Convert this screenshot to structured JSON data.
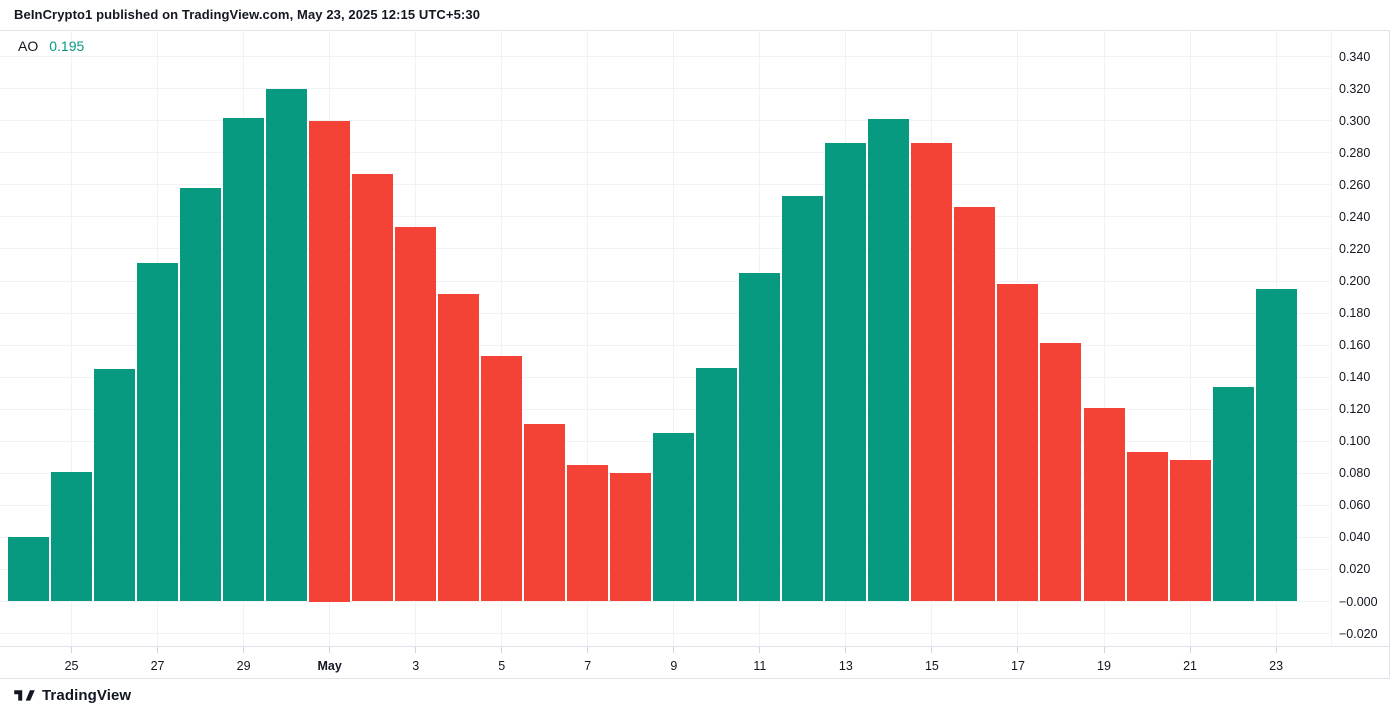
{
  "header": {
    "caption": "BeInCrypto1 published on TradingView.com, May 23, 2025 12:15 UTC+5:30"
  },
  "indicator": {
    "name": "AO",
    "value": "0.195"
  },
  "footer": {
    "logo_text": "TradingView"
  },
  "colors": {
    "up": "#089981",
    "down": "#f44336",
    "grid": "#f0f2f5",
    "border": "#e0e3eb",
    "tick": "#d1d4dc",
    "text": "#131722",
    "background": "#ffffff"
  },
  "chart_data": {
    "type": "bar",
    "title": "AO (Awesome Oscillator) daily histogram",
    "categories": [
      "Apr 24",
      "Apr 25",
      "Apr 26",
      "Apr 27",
      "Apr 28",
      "Apr 29",
      "Apr 30",
      "May 1",
      "May 2",
      "May 3",
      "May 4",
      "May 5",
      "May 6",
      "May 7",
      "May 8",
      "May 9",
      "May 10",
      "May 11",
      "May 12",
      "May 13",
      "May 14",
      "May 15",
      "May 16",
      "May 17",
      "May 18",
      "May 19",
      "May 20",
      "May 21",
      "May 22",
      "May 23"
    ],
    "values": [
      0.04,
      0.081,
      0.145,
      0.211,
      0.258,
      0.302,
      0.32,
      0.3,
      0.267,
      0.234,
      0.192,
      0.153,
      0.111,
      0.085,
      0.08,
      0.105,
      0.146,
      0.205,
      0.253,
      0.286,
      0.301,
      0.286,
      0.246,
      0.198,
      0.161,
      0.121,
      0.093,
      0.088,
      0.134,
      0.195
    ],
    "directions": [
      "up",
      "up",
      "up",
      "up",
      "up",
      "up",
      "up",
      "down",
      "down",
      "down",
      "down",
      "down",
      "down",
      "down",
      "down",
      "up",
      "up",
      "up",
      "up",
      "up",
      "up",
      "down",
      "down",
      "down",
      "down",
      "down",
      "down",
      "down",
      "up",
      "up"
    ],
    "xlabel": "",
    "ylabel": "",
    "grid": true,
    "y_axis": {
      "tick_step": 0.02,
      "labels": [
        "0.340",
        "0.320",
        "0.300",
        "0.280",
        "0.260",
        "0.240",
        "0.220",
        "0.200",
        "0.180",
        "0.160",
        "0.140",
        "0.120",
        "0.100",
        "0.080",
        "0.060",
        "0.040",
        "0.020",
        "−0.000",
        "−0.020"
      ],
      "label_values": [
        0.34,
        0.32,
        0.3,
        0.28,
        0.26,
        0.24,
        0.22,
        0.2,
        0.18,
        0.16,
        0.14,
        0.12,
        0.1,
        0.08,
        0.06,
        0.04,
        0.02,
        0.0,
        -0.02
      ]
    },
    "x_axis": {
      "ticks": [
        {
          "label": "25",
          "day": 1,
          "bold": false
        },
        {
          "label": "27",
          "day": 3,
          "bold": false
        },
        {
          "label": "29",
          "day": 5,
          "bold": false
        },
        {
          "label": "May",
          "day": 7,
          "bold": true
        },
        {
          "label": "3",
          "day": 9,
          "bold": false
        },
        {
          "label": "5",
          "day": 11,
          "bold": false
        },
        {
          "label": "7",
          "day": 13,
          "bold": false
        },
        {
          "label": "9",
          "day": 15,
          "bold": false
        },
        {
          "label": "11",
          "day": 17,
          "bold": false
        },
        {
          "label": "13",
          "day": 19,
          "bold": false
        },
        {
          "label": "15",
          "day": 21,
          "bold": false
        },
        {
          "label": "17",
          "day": 23,
          "bold": false
        },
        {
          "label": "19",
          "day": 25,
          "bold": false
        },
        {
          "label": "21",
          "day": 27,
          "bold": false
        },
        {
          "label": "23",
          "day": 29,
          "bold": false
        }
      ]
    }
  }
}
